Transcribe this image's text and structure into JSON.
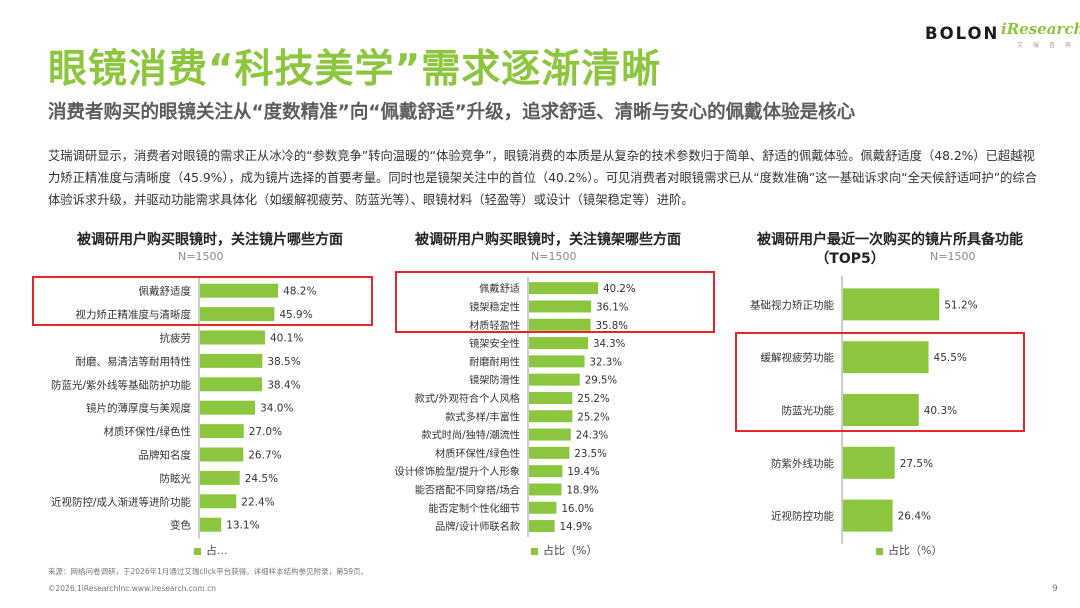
{
  "header": {
    "title": "眼镜消费“科技美学”需求逐渐清晰",
    "subtitle": "消费者购买的眼镜关注从“度数精准”向“佩戴舒适”升级，追求舒适、清晰与安心的佩戴体验是核心",
    "body": "艾瑞调研显示，消费者对眼镜的需求正从冰冷的“参数竞争”转向温暖的“体验竞争”，眼镜消费的本质是从复杂的技术参数归于简单、舒适的佩戴体验。佩戴舒适度（48.2%）已超越视力矫正精准度与清晰度（45.9%），成为镜片选择的首要考量。同时也是镜架关注中的首位（40.2%）。可见消费者对眼镜需求已从“度数准确”这一基础诉求向“全天候舒适呵护”的综合体验诉求升级，并驱动功能需求具体化（如缓解视疲劳、防蓝光等）、眼镜材料（轻盈等）或设计（镜架稳定等）进阶。"
  },
  "logo": {
    "brand": "BOLON",
    "partner": "iResearch",
    "partner_sub": "艾 瑞 咨 询"
  },
  "colors": {
    "accent": "#8cc63f",
    "bar": "#8cc63f",
    "highlight": "#e6262b"
  },
  "chart_data": [
    {
      "type": "bar",
      "orientation": "horizontal",
      "title": "被调研用户购买眼镜时，关注镜片哪些方面",
      "n_label": "N=1500",
      "legend": "占...",
      "categories": [
        "佩戴舒适度",
        "视力矫正精准度与清晰度",
        "抗疲劳",
        "耐磨、易清洁等耐用特性",
        "防蓝光/紫外线等基础防护功能",
        "镜片的薄厚度与美观度",
        "材质环保性/绿色性",
        "品牌知名度",
        "防眩光",
        "近视防控/成人渐进等进阶功能",
        "变色"
      ],
      "values": [
        48.2,
        45.9,
        40.1,
        38.5,
        38.4,
        34.0,
        27.0,
        26.7,
        24.5,
        22.4,
        13.1
      ],
      "value_labels": [
        "48.2%",
        "45.9%",
        "40.1%",
        "38.5%",
        "38.4%",
        "34.0%",
        "27.0%",
        "26.7%",
        "24.5%",
        "22.4%",
        "13.1%"
      ],
      "xlim": [
        0,
        100
      ],
      "highlighted": [
        "佩戴舒适度",
        "视力矫正精准度与清晰度"
      ]
    },
    {
      "type": "bar",
      "orientation": "horizontal",
      "title": "被调研用户购买眼镜时，关注镜架哪些方面",
      "n_label": "N=1500",
      "legend": "占比（%）",
      "categories": [
        "佩戴舒适",
        "镜架稳定性",
        "材质轻盈性",
        "镜架安全性",
        "耐磨耐用性",
        "镜架防滑性",
        "款式/外观符合个人风格",
        "款式多样/丰富性",
        "款式时尚/独特/潮流性",
        "材质环保性/绿色性",
        "设计修饰脸型/提升个人形象",
        "能否搭配不同穿搭/场合",
        "能否定制个性化细节",
        "品牌/设计师联名款"
      ],
      "values": [
        40.2,
        36.1,
        35.8,
        34.3,
        32.3,
        29.5,
        25.2,
        25.2,
        24.3,
        23.5,
        19.4,
        18.9,
        16.0,
        14.9
      ],
      "value_labels": [
        "40.2%",
        "36.1%",
        "35.8%",
        "34.3%",
        "32.3%",
        "29.5%",
        "25.2%",
        "25.2%",
        "24.3%",
        "23.5%",
        "19.4%",
        "18.9%",
        "16.0%",
        "14.9%"
      ],
      "xlim": [
        0,
        100
      ],
      "highlighted": [
        "佩戴舒适",
        "镜架稳定性",
        "材质轻盈性"
      ]
    },
    {
      "type": "bar",
      "orientation": "horizontal",
      "title": "被调研用户最近一次购买的镜片所具备功能",
      "title_line2": "（TOP5）",
      "n_label": "N=1500",
      "legend": "占比（%）",
      "categories": [
        "基础视力矫正功能",
        "缓解视疲劳功能",
        "防蓝光功能",
        "防紫外线功能",
        "近视防控功能"
      ],
      "values": [
        51.2,
        45.5,
        40.3,
        27.5,
        26.4
      ],
      "value_labels": [
        "51.2%",
        "45.5%",
        "40.3%",
        "27.5%",
        "26.4%"
      ],
      "xlim": [
        0,
        100
      ],
      "highlighted": [
        "缓解视疲劳功能",
        "防蓝光功能"
      ]
    }
  ],
  "footer": {
    "source": "来源：网络问卷调研，于2026年1月通过艾瑞click平台获得。详细样本结构参见附录，第59页。",
    "copyright": "©2026.1iResearchInc.www.iresearch.com.cn",
    "page": "9"
  }
}
